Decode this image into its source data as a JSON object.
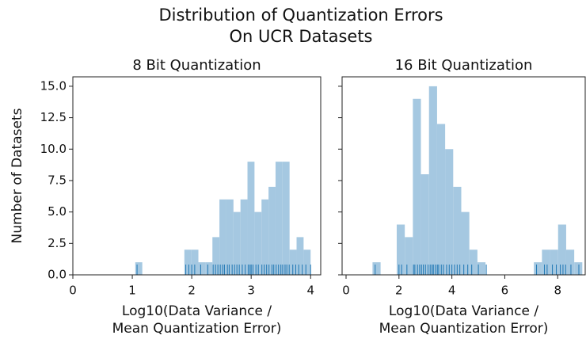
{
  "title": [
    "Distribution of Quantization Errors",
    "On UCR Datasets"
  ],
  "chart_data": [
    {
      "type": "histogram",
      "title": "8 Bit Quantization",
      "xlabel": [
        "Log10(Data Variance /",
        "Mean Quantization Error)"
      ],
      "ylabel": "Number of Datasets",
      "color": "#a5c8e1",
      "rug_color": "#1f77b4",
      "bins": [
        1.05,
        1.168,
        1.286,
        1.404,
        1.522,
        1.64,
        1.758,
        1.876,
        1.994,
        2.112,
        2.23,
        2.348,
        2.466,
        2.584,
        2.702,
        2.82,
        2.938,
        3.056,
        3.174,
        3.292,
        3.41,
        3.528,
        3.646,
        3.764,
        3.882,
        4.0
      ],
      "counts": [
        1,
        0,
        0,
        0,
        0,
        0,
        0,
        2,
        2,
        1,
        1,
        3,
        6,
        6,
        5,
        6,
        9,
        5,
        6,
        7,
        9,
        9,
        2,
        3,
        2
      ],
      "rug": [
        1.08,
        1.9,
        1.95,
        2.0,
        2.05,
        2.15,
        2.27,
        2.36,
        2.4,
        2.44,
        2.48,
        2.52,
        2.55,
        2.6,
        2.63,
        2.68,
        2.72,
        2.76,
        2.8,
        2.85,
        2.9,
        2.95,
        2.98,
        3.0,
        3.03,
        3.08,
        3.12,
        3.18,
        3.22,
        3.26,
        3.3,
        3.35,
        3.38,
        3.42,
        3.46,
        3.5,
        3.53,
        3.57,
        3.6,
        3.64,
        3.7,
        3.75,
        3.8,
        3.86,
        3.92,
        4.0
      ],
      "xlim": [
        0,
        4.17
      ],
      "xticks": [
        0,
        1,
        2,
        3,
        4
      ],
      "ylim": [
        0,
        15.75
      ],
      "yticks": [
        {
          "value": 0,
          "label": "0.0"
        },
        {
          "value": 2.5,
          "label": "2.5"
        },
        {
          "value": 5,
          "label": "5.0"
        },
        {
          "value": 7.5,
          "label": "7.5"
        },
        {
          "value": 10,
          "label": "10.0"
        },
        {
          "value": 12.5,
          "label": "12.5"
        },
        {
          "value": 15,
          "label": "15.0"
        }
      ],
      "show_ytick_labels": true
    },
    {
      "type": "histogram",
      "title": "16 Bit Quantization",
      "xlabel": [
        "Log10(Data Variance /",
        "Mean Quantization Error)"
      ],
      "color": "#a5c8e1",
      "rug_color": "#1f77b4",
      "bins": [
        1.0,
        1.305,
        1.61,
        1.915,
        2.22,
        2.525,
        2.83,
        3.135,
        3.44,
        3.745,
        4.05,
        4.355,
        4.66,
        4.965,
        5.27,
        5.575,
        5.88,
        6.185,
        6.49,
        6.795,
        7.1,
        7.405,
        7.71,
        8.015,
        8.32,
        8.625,
        8.93
      ],
      "counts": [
        1,
        0,
        0,
        4,
        3,
        14,
        8,
        15,
        12,
        10,
        7,
        5,
        2,
        1,
        0,
        0,
        0,
        0,
        0,
        0,
        1,
        2,
        2,
        4,
        2,
        1
      ],
      "rug": [
        1.1,
        2.0,
        2.1,
        2.3,
        2.55,
        2.6,
        2.7,
        2.78,
        2.85,
        2.92,
        3.0,
        3.1,
        3.18,
        3.25,
        3.3,
        3.38,
        3.45,
        3.5,
        3.6,
        3.68,
        3.8,
        3.9,
        4.0,
        4.1,
        4.2,
        4.3,
        4.45,
        4.6,
        4.75,
        5.0,
        5.3,
        7.2,
        7.5,
        7.6,
        7.8,
        7.95,
        8.1,
        8.2,
        8.3,
        8.5,
        8.8
      ],
      "xlim": [
        -0.15,
        9.04
      ],
      "xticks": [
        0,
        2,
        4,
        6,
        8
      ],
      "ylim": [
        0,
        15.75
      ],
      "yticks": [
        {
          "value": 0,
          "label": "0.0"
        },
        {
          "value": 2.5,
          "label": "2.5"
        },
        {
          "value": 5,
          "label": "5.0"
        },
        {
          "value": 7.5,
          "label": "7.5"
        },
        {
          "value": 10,
          "label": "10.0"
        },
        {
          "value": 12.5,
          "label": "12.5"
        },
        {
          "value": 15,
          "label": "15.0"
        }
      ],
      "show_ytick_labels": false
    }
  ]
}
